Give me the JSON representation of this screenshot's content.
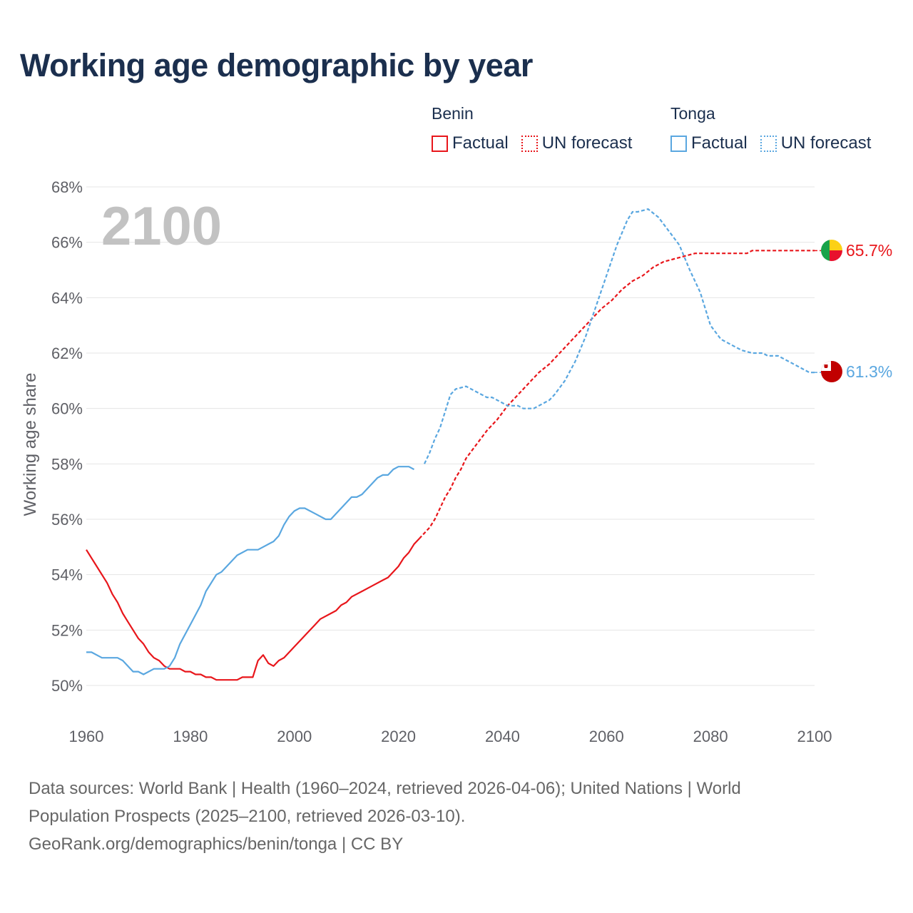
{
  "title": "Working age demographic by year",
  "legend": {
    "benin": {
      "name": "Benin",
      "factual": "Factual",
      "forecast": "UN forecast"
    },
    "tonga": {
      "name": "Tonga",
      "factual": "Factual",
      "forecast": "UN forecast"
    }
  },
  "colors": {
    "benin": "#e8161b",
    "tonga": "#5aa7e0",
    "grid": "#e5e5e5",
    "title": "#1b2f4e"
  },
  "footer": {
    "line1": "Data sources: World Bank | Health (1960–2024, retrieved 2026-04-06); United Nations | World",
    "line2": "Population Prospects (2025–2100, retrieved 2026-03-10).",
    "line3": "GeoRank.org/demographics/benin/tonga | CC BY"
  },
  "chart_data": {
    "type": "line",
    "title": "Working age demographic by year",
    "year_label": "2100",
    "xlabel": "",
    "ylabel": "Working age share",
    "xlim": [
      1960,
      2100
    ],
    "ylim": [
      50,
      68
    ],
    "x_ticks": [
      "1960",
      "1980",
      "2000",
      "2020",
      "2040",
      "2060",
      "2080",
      "2100"
    ],
    "y_ticks": [
      "50%",
      "52%",
      "54%",
      "56%",
      "58%",
      "60%",
      "62%",
      "64%",
      "66%",
      "68%"
    ],
    "factual_end_year": 2024,
    "series": [
      {
        "name": "Benin",
        "color": "#e8161b",
        "end_label": "65.7%",
        "points": [
          [
            1960,
            54.9
          ],
          [
            1962,
            54.3
          ],
          [
            1964,
            53.7
          ],
          [
            1965,
            53.3
          ],
          [
            1966,
            53.0
          ],
          [
            1967,
            52.6
          ],
          [
            1968,
            52.3
          ],
          [
            1970,
            51.7
          ],
          [
            1971,
            51.5
          ],
          [
            1972,
            51.2
          ],
          [
            1973,
            51.0
          ],
          [
            1974,
            50.9
          ],
          [
            1975,
            50.7
          ],
          [
            1976,
            50.6
          ],
          [
            1978,
            50.6
          ],
          [
            1979,
            50.5
          ],
          [
            1980,
            50.5
          ],
          [
            1981,
            50.4
          ],
          [
            1982,
            50.4
          ],
          [
            1983,
            50.3
          ],
          [
            1984,
            50.3
          ],
          [
            1985,
            50.2
          ],
          [
            1989,
            50.2
          ],
          [
            1990,
            50.3
          ],
          [
            1992,
            50.3
          ],
          [
            1993,
            50.9
          ],
          [
            1994,
            51.1
          ],
          [
            1995,
            50.8
          ],
          [
            1996,
            50.7
          ],
          [
            1997,
            50.9
          ],
          [
            1998,
            51.0
          ],
          [
            2000,
            51.4
          ],
          [
            2002,
            51.8
          ],
          [
            2004,
            52.2
          ],
          [
            2005,
            52.4
          ],
          [
            2007,
            52.6
          ],
          [
            2008,
            52.7
          ],
          [
            2009,
            52.9
          ],
          [
            2010,
            53.0
          ],
          [
            2011,
            53.2
          ],
          [
            2013,
            53.4
          ],
          [
            2015,
            53.6
          ],
          [
            2017,
            53.8
          ],
          [
            2018,
            53.9
          ],
          [
            2020,
            54.3
          ],
          [
            2021,
            54.6
          ],
          [
            2022,
            54.8
          ],
          [
            2023,
            55.1
          ],
          [
            2024,
            55.3
          ],
          [
            2026,
            55.7
          ],
          [
            2027,
            56.0
          ],
          [
            2028,
            56.4
          ],
          [
            2029,
            56.8
          ],
          [
            2030,
            57.1
          ],
          [
            2031,
            57.5
          ],
          [
            2032,
            57.8
          ],
          [
            2033,
            58.2
          ],
          [
            2035,
            58.7
          ],
          [
            2037,
            59.2
          ],
          [
            2039,
            59.6
          ],
          [
            2041,
            60.1
          ],
          [
            2043,
            60.5
          ],
          [
            2045,
            60.9
          ],
          [
            2047,
            61.3
          ],
          [
            2049,
            61.6
          ],
          [
            2051,
            62.0
          ],
          [
            2053,
            62.4
          ],
          [
            2055,
            62.8
          ],
          [
            2057,
            63.2
          ],
          [
            2059,
            63.6
          ],
          [
            2061,
            63.9
          ],
          [
            2063,
            64.3
          ],
          [
            2065,
            64.6
          ],
          [
            2067,
            64.8
          ],
          [
            2069,
            65.1
          ],
          [
            2071,
            65.3
          ],
          [
            2073,
            65.4
          ],
          [
            2075,
            65.5
          ],
          [
            2077,
            65.6
          ],
          [
            2087,
            65.6
          ],
          [
            2088,
            65.7
          ],
          [
            2100,
            65.7
          ]
        ]
      },
      {
        "name": "Tonga",
        "color": "#5aa7e0",
        "end_label": "61.3%",
        "points": [
          [
            1960,
            51.2
          ],
          [
            1961,
            51.2
          ],
          [
            1963,
            51.0
          ],
          [
            1966,
            51.0
          ],
          [
            1967,
            50.9
          ],
          [
            1969,
            50.5
          ],
          [
            1970,
            50.5
          ],
          [
            1971,
            50.4
          ],
          [
            1973,
            50.6
          ],
          [
            1975,
            50.6
          ],
          [
            1976,
            50.7
          ],
          [
            1977,
            51.0
          ],
          [
            1978,
            51.5
          ],
          [
            1980,
            52.2
          ],
          [
            1982,
            52.9
          ],
          [
            1983,
            53.4
          ],
          [
            1985,
            54.0
          ],
          [
            1986,
            54.1
          ],
          [
            1988,
            54.5
          ],
          [
            1989,
            54.7
          ],
          [
            1991,
            54.9
          ],
          [
            1993,
            54.9
          ],
          [
            1995,
            55.1
          ],
          [
            1996,
            55.2
          ],
          [
            1997,
            55.4
          ],
          [
            1998,
            55.8
          ],
          [
            1999,
            56.1
          ],
          [
            2000,
            56.3
          ],
          [
            2001,
            56.4
          ],
          [
            2002,
            56.4
          ],
          [
            2004,
            56.2
          ],
          [
            2006,
            56.0
          ],
          [
            2007,
            56.0
          ],
          [
            2009,
            56.4
          ],
          [
            2011,
            56.8
          ],
          [
            2012,
            56.8
          ],
          [
            2013,
            56.9
          ],
          [
            2015,
            57.3
          ],
          [
            2016,
            57.5
          ],
          [
            2017,
            57.6
          ],
          [
            2018,
            57.6
          ],
          [
            2019,
            57.8
          ],
          [
            2020,
            57.9
          ],
          [
            2022,
            57.9
          ],
          [
            2023,
            57.8
          ],
          [
            2025,
            58.0
          ],
          [
            2026,
            58.4
          ],
          [
            2027,
            58.9
          ],
          [
            2028,
            59.3
          ],
          [
            2029,
            59.9
          ],
          [
            2030,
            60.5
          ],
          [
            2031,
            60.7
          ],
          [
            2033,
            60.8
          ],
          [
            2035,
            60.6
          ],
          [
            2037,
            60.4
          ],
          [
            2038,
            60.4
          ],
          [
            2040,
            60.2
          ],
          [
            2041,
            60.1
          ],
          [
            2043,
            60.1
          ],
          [
            2044,
            60.0
          ],
          [
            2046,
            60.0
          ],
          [
            2048,
            60.2
          ],
          [
            2049,
            60.3
          ],
          [
            2050,
            60.5
          ],
          [
            2052,
            61.0
          ],
          [
            2054,
            61.7
          ],
          [
            2056,
            62.6
          ],
          [
            2058,
            63.7
          ],
          [
            2060,
            64.8
          ],
          [
            2062,
            65.9
          ],
          [
            2064,
            66.8
          ],
          [
            2065,
            67.1
          ],
          [
            2066,
            67.1
          ],
          [
            2068,
            67.2
          ],
          [
            2070,
            66.9
          ],
          [
            2072,
            66.4
          ],
          [
            2074,
            65.9
          ],
          [
            2076,
            65.0
          ],
          [
            2078,
            64.2
          ],
          [
            2080,
            63.0
          ],
          [
            2082,
            62.5
          ],
          [
            2084,
            62.3
          ],
          [
            2086,
            62.1
          ],
          [
            2088,
            62.0
          ],
          [
            2090,
            62.0
          ],
          [
            2091,
            61.9
          ],
          [
            2093,
            61.9
          ],
          [
            2095,
            61.7
          ],
          [
            2097,
            61.5
          ],
          [
            2099,
            61.3
          ],
          [
            2100,
            61.3
          ]
        ]
      }
    ]
  }
}
